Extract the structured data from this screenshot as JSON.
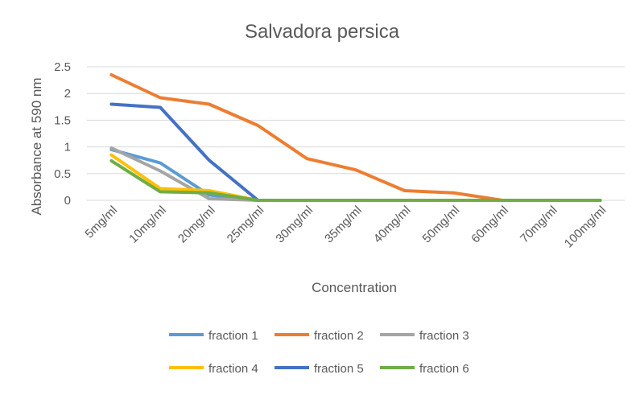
{
  "chart_data": {
    "type": "line",
    "title": "Salvadora persica",
    "xlabel": "Concentration",
    "ylabel": "Absorbance at 590 nm",
    "ylim": [
      0,
      2.5
    ],
    "yticks": [
      "0",
      "0.5",
      "1",
      "1.5",
      "2",
      "2.5"
    ],
    "grid": true,
    "legend_position": "bottom",
    "categories": [
      "5mg/ml",
      "10mg/ml",
      "20mg/ml",
      "25mg/ml",
      "30mg/ml",
      "35mg/ml",
      "40mg/ml",
      "50mg/ml",
      "60mg/ml",
      "70mg/ml",
      "100mg/ml"
    ],
    "series": [
      {
        "name": "fraction 1",
        "color": "#5B9BD5",
        "values": [
          0.95,
          0.7,
          0.1,
          0,
          0,
          0,
          0,
          0,
          0,
          0,
          0
        ]
      },
      {
        "name": "fraction 2",
        "color": "#ED7D31",
        "values": [
          2.35,
          1.92,
          1.8,
          1.4,
          0.78,
          0.57,
          0.18,
          0.14,
          0,
          0,
          0
        ]
      },
      {
        "name": "fraction 3",
        "color": "#A5A5A5",
        "values": [
          0.98,
          0.55,
          0.03,
          0,
          0,
          0,
          0,
          0,
          0,
          0,
          0
        ]
      },
      {
        "name": "fraction 4",
        "color": "#FFC000",
        "values": [
          0.85,
          0.22,
          0.18,
          0,
          0,
          0,
          0,
          0,
          0,
          0,
          0
        ]
      },
      {
        "name": "fraction 5",
        "color": "#4472C4",
        "values": [
          1.8,
          1.74,
          0.75,
          0,
          0,
          0,
          0,
          0,
          0,
          0,
          0
        ]
      },
      {
        "name": "fraction 6",
        "color": "#70AD47",
        "values": [
          0.74,
          0.16,
          0.14,
          0,
          0,
          0,
          0,
          0,
          0,
          0,
          0
        ]
      }
    ]
  }
}
